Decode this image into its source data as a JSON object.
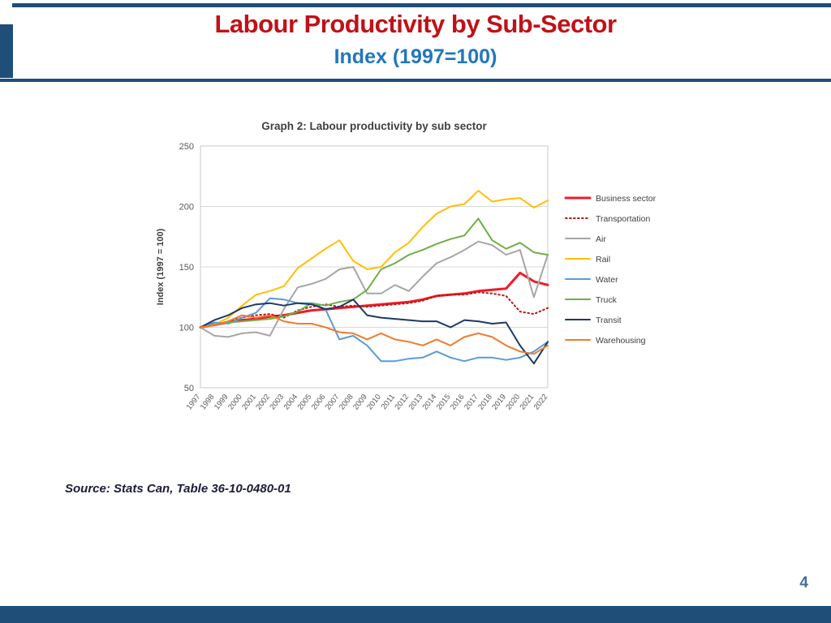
{
  "header": {
    "title": "Labour Productivity by Sub-Sector",
    "subtitle": "Index (1997=100)"
  },
  "source_note": "Source: Stats Can, Table 36-10-0480-01",
  "page_number": "4",
  "colors": {
    "header_border": "#1f4e79",
    "title_red": "#bf1218",
    "subtitle_blue": "#2376bd",
    "footer_bar": "#1f4e79"
  },
  "chart_data": {
    "type": "line",
    "title": "Graph 2: Labour productivity by sub sector",
    "xlabel": "",
    "ylabel": "Index (1997 = 100)",
    "ylim": [
      50,
      250
    ],
    "yticks": [
      50,
      100,
      150,
      200,
      250
    ],
    "grid": true,
    "legend_position": "right",
    "x": [
      1997,
      1998,
      1999,
      2000,
      2001,
      2002,
      2003,
      2004,
      2005,
      2006,
      2007,
      2008,
      2009,
      2010,
      2011,
      2012,
      2013,
      2014,
      2015,
      2016,
      2017,
      2018,
      2019,
      2020,
      2021,
      2022
    ],
    "series": [
      {
        "name": "Business sector",
        "color": "#ee1c25",
        "style": "solid",
        "width": 3,
        "values": [
          100,
          102,
          104,
          106,
          107,
          109,
          110,
          112,
          114,
          115,
          116,
          117,
          118,
          119,
          120,
          121,
          123,
          126,
          127,
          128,
          130,
          131,
          132,
          145,
          138,
          135
        ]
      },
      {
        "name": "Transportation",
        "color": "#b51a1a",
        "style": "dotted",
        "width": 2,
        "values": [
          100,
          102,
          105,
          108,
          110,
          111,
          108,
          114,
          117,
          119,
          117,
          118,
          117,
          118,
          119,
          120,
          122,
          126,
          127,
          127,
          129,
          128,
          126,
          113,
          111,
          116
        ]
      },
      {
        "name": "Air",
        "color": "#a6a6a6",
        "style": "solid",
        "width": 2,
        "values": [
          100,
          93,
          92,
          95,
          96,
          93,
          115,
          133,
          136,
          140,
          148,
          150,
          128,
          128,
          135,
          130,
          142,
          153,
          158,
          164,
          171,
          168,
          160,
          164,
          125,
          160
        ]
      },
      {
        "name": "Rail",
        "color": "#ffc000",
        "style": "solid",
        "width": 2,
        "values": [
          100,
          102,
          108,
          118,
          127,
          130,
          134,
          149,
          157,
          165,
          172,
          155,
          148,
          150,
          162,
          170,
          183,
          194,
          200,
          202,
          213,
          204,
          206,
          207,
          199,
          205
        ]
      },
      {
        "name": "Water",
        "color": "#5b9bd5",
        "style": "solid",
        "width": 2,
        "values": [
          100,
          104,
          103,
          108,
          112,
          124,
          123,
          120,
          120,
          115,
          90,
          93,
          85,
          72,
          72,
          74,
          75,
          80,
          75,
          72,
          75,
          75,
          73,
          75,
          80,
          88
        ]
      },
      {
        "name": "Truck",
        "color": "#70ad47",
        "style": "solid",
        "width": 2,
        "values": [
          100,
          102,
          104,
          105,
          106,
          107,
          109,
          113,
          120,
          118,
          121,
          123,
          131,
          148,
          153,
          160,
          164,
          169,
          173,
          176,
          190,
          172,
          165,
          170,
          162,
          160
        ]
      },
      {
        "name": "Transit",
        "color": "#1f3864",
        "style": "solid",
        "width": 2,
        "values": [
          100,
          106,
          110,
          116,
          119,
          120,
          118,
          120,
          119,
          115,
          117,
          123,
          110,
          108,
          107,
          106,
          105,
          105,
          100,
          106,
          105,
          103,
          104,
          85,
          70,
          88
        ]
      },
      {
        "name": "Warehousing",
        "color": "#ed7d31",
        "style": "solid",
        "width": 2,
        "values": [
          100,
          102,
          105,
          110,
          108,
          110,
          105,
          103,
          103,
          100,
          96,
          95,
          90,
          95,
          90,
          88,
          85,
          90,
          85,
          92,
          95,
          92,
          85,
          80,
          78,
          85
        ]
      }
    ]
  }
}
